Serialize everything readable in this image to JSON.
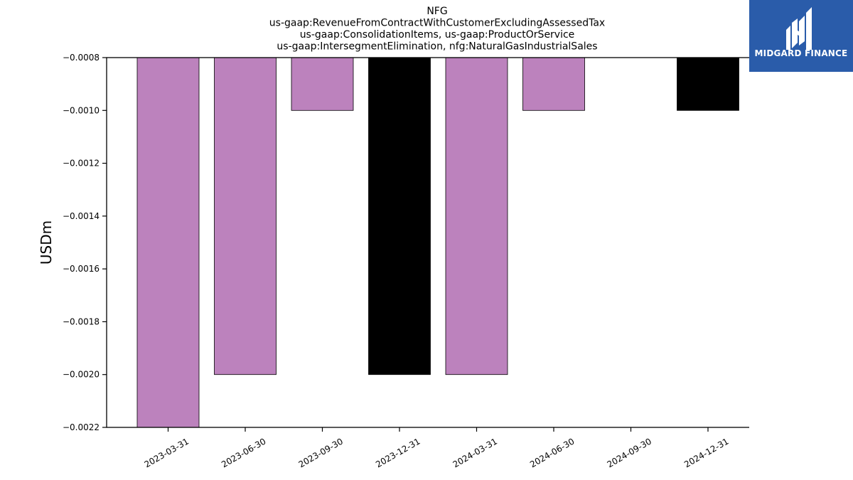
{
  "chart_data": {
    "type": "bar",
    "title_lines": [
      "NFG",
      "us-gaap:RevenueFromContractWithCustomerExcludingAssessedTax",
      "us-gaap:ConsolidationItems, us-gaap:ProductOrService",
      "us-gaap:IntersegmentElimination, nfg:NaturalGasIndustrialSales"
    ],
    "ylabel": "USDm",
    "categories": [
      "2023-03-31",
      "2023-06-30",
      "2023-09-30",
      "2023-12-31",
      "2024-03-31",
      "2024-06-30",
      "2024-09-30",
      "2024-12-31"
    ],
    "values": [
      -0.0022,
      -0.002,
      -0.001,
      -0.002,
      -0.002,
      -0.001,
      null,
      -0.001
    ],
    "bar_colors": [
      "#bc82bd",
      "#bc82bd",
      "#bc82bd",
      "#000000",
      "#bc82bd",
      "#bc82bd",
      "#bc82bd",
      "#000000"
    ],
    "ylim": [
      -0.0022,
      -0.0008
    ],
    "yticks": [
      -0.0008,
      -0.001,
      -0.0012,
      -0.0014,
      -0.0016,
      -0.0018,
      -0.002,
      -0.0022
    ],
    "ytick_labels": [
      "−0.0008",
      "−0.0010",
      "−0.0012",
      "−0.0014",
      "−0.0016",
      "−0.0018",
      "−0.0020",
      "−0.0022"
    ],
    "grid": false,
    "legend": "none"
  },
  "logo": {
    "text": "MIDGARD FINANCE",
    "background": "#2a5caa",
    "icon": "midgard-m-icon"
  }
}
